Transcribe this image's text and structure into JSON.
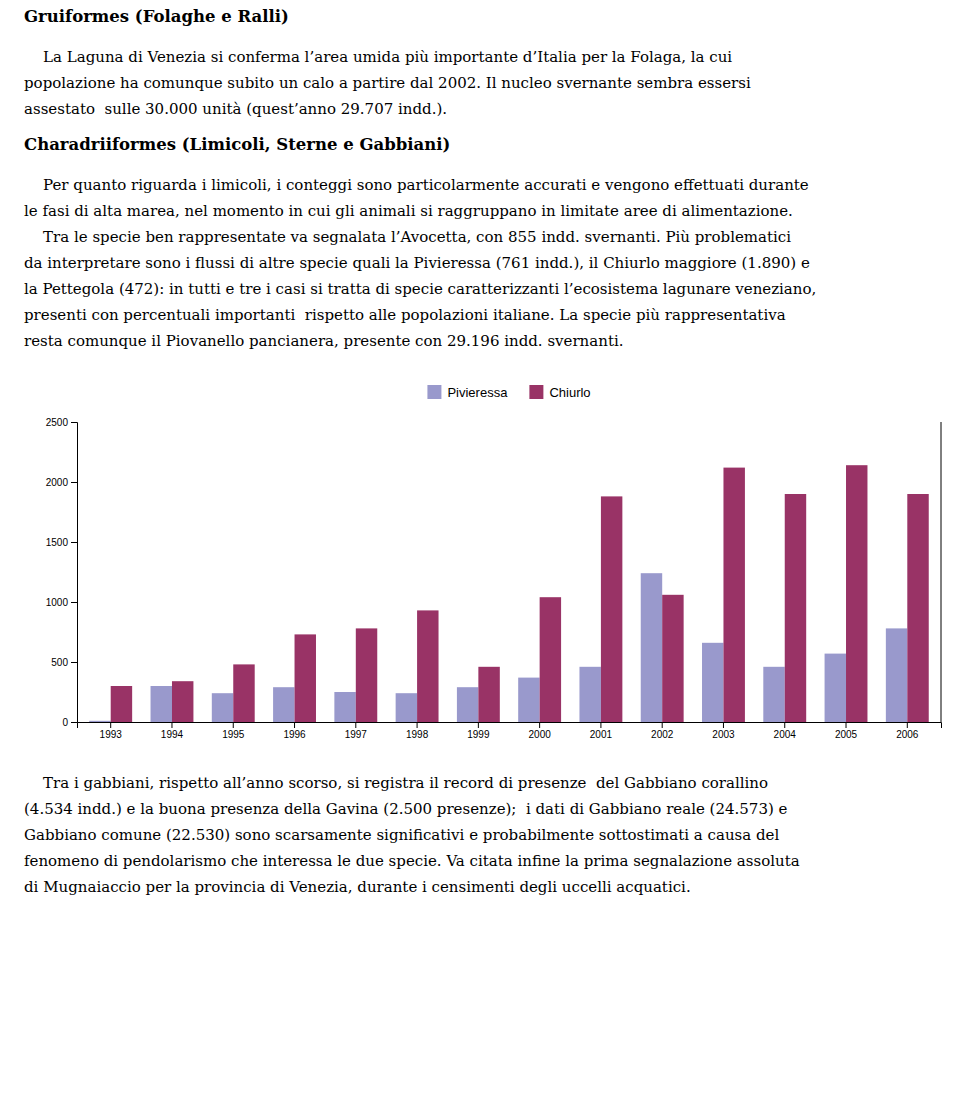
{
  "chart_data": {
    "type": "bar",
    "categories": [
      "1993",
      "1994",
      "1995",
      "1996",
      "1997",
      "1998",
      "1999",
      "2000",
      "2001",
      "2002",
      "2003",
      "2004",
      "2005",
      "2006"
    ],
    "series": [
      {
        "name": "Pivieressa",
        "color": "#9999CC",
        "values": [
          10,
          300,
          240,
          290,
          250,
          240,
          290,
          370,
          460,
          1240,
          660,
          460,
          570,
          780
        ]
      },
      {
        "name": "Chiurlo",
        "color": "#993366",
        "values": [
          300,
          340,
          480,
          730,
          780,
          930,
          460,
          1040,
          1880,
          1060,
          2120,
          1900,
          2140,
          1900
        ]
      }
    ],
    "ylim": [
      0,
      2500
    ],
    "yticks": [
      0,
      500,
      1000,
      1500,
      2000,
      2500
    ],
    "grid": false,
    "legend": "top",
    "annotations": [
      {
        "title": "Gruiformes (Folaghe e Ralli)",
        "text": [
          "    La Laguna di Venezia si conferma l’area umida più importante d’Italia per la Folaga, la cui",
          "popolazione ha comunque subito un calo a partire dal 2002. Il nucleo svernante sembra essersi",
          "assestato  sulle 30.000 unità (quest’anno 29.707 indd.)."
        ]
      },
      {
        "title": "Charadriiformes (Limicoli, Sterne e Gabbiani)",
        "text": [
          "    Per quanto riguarda i limicoli, i conteggi sono particolarmente accurati e vengono effettuati durante",
          "le fasi di alta marea, nel momento in cui gli animali si raggruppano in limitate aree di alimentazione.",
          "    Tra le specie ben rappresentate va segnalata l’Avocetta, con 855 indd. svernanti. Più problematici",
          "da interpretare sono i flussi di altre specie quali la Pivieressa (761 indd.), il Chiurlo maggiore (1.890) e",
          "la Pettegola (472): in tutti e tre i casi si tratta di specie caratterizzanti l’ecosistema lagunare veneziano,",
          "presenti con percentuali importanti  rispetto alle popolazioni italiane. La specie più rappresentativa",
          "resta comunque il Piovanello pancianera, presente con 29.196 indd. svernanti."
        ]
      },
      {
        "text": [
          "    Tra i gabbiani, rispetto all’anno scorso, si registra il record di presenze  del Gabbiano corallino",
          "(4.534 indd.) e la buona presenza della Gavina (2.500 presenze);  i dati di Gabbiano reale (24.573) e",
          "Gabbiano comune (22.530) sono scarsamente significativi e probabilmente sottostimati a causa del",
          "fenomeno di pendolarismo che interessa le due specie. Va citata infine la prima segnalazione assoluta",
          "di Mugnaiaccio per la provincia di Venezia, durante i censimenti degli uccelli acquatici."
        ]
      }
    ]
  }
}
